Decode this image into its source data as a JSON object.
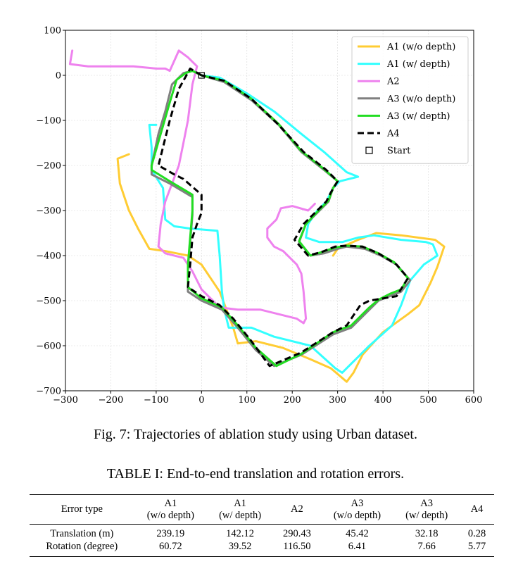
{
  "chart_data": {
    "type": "line",
    "title": "",
    "xlabel": "",
    "ylabel": "",
    "xlim": [
      -300,
      600
    ],
    "ylim": [
      -700,
      100
    ],
    "xticks": [
      -300,
      -200,
      -100,
      0,
      100,
      200,
      300,
      400,
      500,
      600
    ],
    "yticks": [
      100,
      0,
      -100,
      -200,
      -300,
      -400,
      -500,
      -600,
      -700
    ],
    "grid": true,
    "legend_position": "top-right",
    "series": [
      {
        "name": "A1 (w/o depth)",
        "color": "#ffcc33",
        "style": "solid",
        "points": [
          [
            -160,
            -175
          ],
          [
            -185,
            -185
          ],
          [
            -180,
            -240
          ],
          [
            -160,
            -300
          ],
          [
            -140,
            -340
          ],
          [
            -115,
            -385
          ],
          [
            -80,
            -390
          ],
          [
            -30,
            -400
          ],
          [
            0,
            -420
          ],
          [
            40,
            -480
          ],
          [
            70,
            -560
          ],
          [
            80,
            -595
          ],
          [
            120,
            -590
          ],
          [
            180,
            -605
          ],
          [
            240,
            -630
          ],
          [
            285,
            -650
          ],
          [
            320,
            -680
          ],
          [
            335,
            -660
          ],
          [
            355,
            -620
          ],
          [
            400,
            -570
          ],
          [
            455,
            -530
          ],
          [
            480,
            -510
          ],
          [
            505,
            -460
          ],
          [
            520,
            -425
          ],
          [
            535,
            -380
          ],
          [
            515,
            -365
          ],
          [
            440,
            -355
          ],
          [
            385,
            -350
          ],
          [
            345,
            -365
          ],
          [
            300,
            -385
          ],
          [
            290,
            -400
          ]
        ]
      },
      {
        "name": "A1 (w/ depth)",
        "color": "#33ffff",
        "style": "solid",
        "points": [
          [
            -100,
            -110
          ],
          [
            -115,
            -110
          ],
          [
            -110,
            -160
          ],
          [
            -110,
            -210
          ],
          [
            -85,
            -250
          ],
          [
            -80,
            -320
          ],
          [
            -60,
            -335
          ],
          [
            -25,
            -340
          ],
          [
            35,
            -345
          ],
          [
            40,
            -400
          ],
          [
            45,
            -480
          ],
          [
            50,
            -520
          ],
          [
            60,
            -560
          ],
          [
            110,
            -560
          ],
          [
            160,
            -580
          ],
          [
            240,
            -600
          ],
          [
            295,
            -650
          ],
          [
            310,
            -660
          ],
          [
            330,
            -640
          ],
          [
            370,
            -600
          ],
          [
            420,
            -555
          ],
          [
            440,
            -510
          ],
          [
            460,
            -455
          ],
          [
            490,
            -420
          ],
          [
            520,
            -400
          ],
          [
            510,
            -375
          ],
          [
            495,
            -370
          ],
          [
            440,
            -365
          ],
          [
            380,
            -355
          ],
          [
            345,
            -360
          ],
          [
            310,
            -370
          ],
          [
            260,
            -370
          ],
          [
            230,
            -360
          ],
          [
            235,
            -330
          ],
          [
            255,
            -300
          ],
          [
            275,
            -280
          ],
          [
            290,
            -250
          ],
          [
            305,
            -235
          ],
          [
            325,
            -230
          ],
          [
            345,
            -225
          ],
          [
            320,
            -215
          ],
          [
            270,
            -170
          ],
          [
            220,
            -130
          ],
          [
            160,
            -80
          ],
          [
            100,
            -40
          ],
          [
            40,
            -5
          ],
          [
            0,
            0
          ]
        ]
      },
      {
        "name": "A2",
        "color": "#ee82ee",
        "style": "solid",
        "points": [
          [
            -285,
            55
          ],
          [
            -290,
            25
          ],
          [
            -250,
            20
          ],
          [
            -200,
            20
          ],
          [
            -150,
            20
          ],
          [
            -100,
            15
          ],
          [
            -80,
            15
          ],
          [
            -70,
            10
          ],
          [
            -50,
            55
          ],
          [
            -30,
            40
          ],
          [
            -10,
            20
          ],
          [
            -20,
            -20
          ],
          [
            -30,
            -100
          ],
          [
            -40,
            -150
          ],
          [
            -50,
            -200
          ],
          [
            -80,
            -280
          ],
          [
            -90,
            -330
          ],
          [
            -95,
            -380
          ],
          [
            -80,
            -395
          ],
          [
            -40,
            -405
          ],
          [
            -20,
            -435
          ],
          [
            0,
            -475
          ],
          [
            40,
            -515
          ],
          [
            80,
            -520
          ],
          [
            130,
            -520
          ],
          [
            170,
            -530
          ],
          [
            210,
            -540
          ],
          [
            225,
            -550
          ],
          [
            230,
            -540
          ],
          [
            225,
            -480
          ],
          [
            220,
            -440
          ],
          [
            210,
            -420
          ],
          [
            180,
            -390
          ],
          [
            160,
            -380
          ],
          [
            145,
            -360
          ],
          [
            145,
            -340
          ],
          [
            165,
            -320
          ],
          [
            175,
            -295
          ],
          [
            200,
            -290
          ],
          [
            235,
            -300
          ],
          [
            250,
            -285
          ]
        ]
      },
      {
        "name": "A3 (w/o depth)",
        "color": "#808080",
        "style": "solid",
        "points": [
          [
            0,
            0
          ],
          [
            -20,
            10
          ],
          [
            -40,
            5
          ],
          [
            -65,
            -20
          ],
          [
            -80,
            -80
          ],
          [
            -95,
            -130
          ],
          [
            -110,
            -200
          ],
          [
            -110,
            -220
          ],
          [
            -70,
            -240
          ],
          [
            -20,
            -270
          ],
          [
            -20,
            -310
          ],
          [
            -25,
            -370
          ],
          [
            -30,
            -430
          ],
          [
            -30,
            -480
          ],
          [
            0,
            -500
          ],
          [
            45,
            -520
          ],
          [
            80,
            -560
          ],
          [
            120,
            -610
          ],
          [
            160,
            -645
          ],
          [
            220,
            -620
          ],
          [
            290,
            -575
          ],
          [
            330,
            -560
          ],
          [
            370,
            -520
          ],
          [
            390,
            -500
          ],
          [
            415,
            -490
          ],
          [
            440,
            -480
          ],
          [
            460,
            -455
          ],
          [
            430,
            -420
          ],
          [
            395,
            -400
          ],
          [
            360,
            -385
          ],
          [
            320,
            -380
          ],
          [
            300,
            -385
          ],
          [
            270,
            -395
          ],
          [
            240,
            -400
          ],
          [
            215,
            -370
          ],
          [
            230,
            -330
          ],
          [
            260,
            -300
          ],
          [
            280,
            -280
          ],
          [
            290,
            -250
          ],
          [
            300,
            -235
          ],
          [
            270,
            -210
          ],
          [
            220,
            -170
          ],
          [
            170,
            -110
          ],
          [
            110,
            -55
          ],
          [
            50,
            -15
          ],
          [
            0,
            0
          ]
        ]
      },
      {
        "name": "A3 (w/ depth)",
        "color": "#22dd22",
        "style": "solid",
        "points": [
          [
            0,
            0
          ],
          [
            -20,
            10
          ],
          [
            -35,
            5
          ],
          [
            -55,
            -10
          ],
          [
            -70,
            -60
          ],
          [
            -90,
            -130
          ],
          [
            -110,
            -200
          ],
          [
            -110,
            -210
          ],
          [
            -70,
            -235
          ],
          [
            -20,
            -265
          ],
          [
            -20,
            -300
          ],
          [
            -25,
            -360
          ],
          [
            -30,
            -420
          ],
          [
            -30,
            -470
          ],
          [
            0,
            -495
          ],
          [
            45,
            -515
          ],
          [
            80,
            -555
          ],
          [
            120,
            -605
          ],
          [
            165,
            -645
          ],
          [
            220,
            -618
          ],
          [
            290,
            -570
          ],
          [
            330,
            -555
          ],
          [
            370,
            -515
          ],
          [
            390,
            -498
          ],
          [
            415,
            -485
          ],
          [
            440,
            -475
          ],
          [
            455,
            -450
          ],
          [
            425,
            -415
          ],
          [
            390,
            -395
          ],
          [
            355,
            -380
          ],
          [
            320,
            -378
          ],
          [
            295,
            -382
          ],
          [
            265,
            -392
          ],
          [
            240,
            -400
          ],
          [
            215,
            -368
          ],
          [
            230,
            -330
          ],
          [
            260,
            -298
          ],
          [
            280,
            -278
          ],
          [
            290,
            -250
          ],
          [
            300,
            -235
          ],
          [
            270,
            -208
          ],
          [
            220,
            -168
          ],
          [
            170,
            -108
          ],
          [
            110,
            -52
          ],
          [
            50,
            -12
          ],
          [
            0,
            0
          ]
        ]
      },
      {
        "name": "A4",
        "color": "#000000",
        "style": "dashed",
        "points": [
          [
            0,
            0
          ],
          [
            -25,
            15
          ],
          [
            -50,
            -30
          ],
          [
            -70,
            -100
          ],
          [
            -90,
            -180
          ],
          [
            -95,
            -200
          ],
          [
            -60,
            -220
          ],
          [
            -40,
            -230
          ],
          [
            0,
            -265
          ],
          [
            0,
            -305
          ],
          [
            -10,
            -330
          ],
          [
            -20,
            -360
          ],
          [
            -25,
            -420
          ],
          [
            -30,
            -470
          ],
          [
            0,
            -490
          ],
          [
            40,
            -510
          ],
          [
            70,
            -540
          ],
          [
            110,
            -590
          ],
          [
            150,
            -645
          ],
          [
            220,
            -615
          ],
          [
            290,
            -570
          ],
          [
            320,
            -555
          ],
          [
            350,
            -510
          ],
          [
            370,
            -500
          ],
          [
            400,
            -495
          ],
          [
            430,
            -490
          ],
          [
            455,
            -450
          ],
          [
            430,
            -420
          ],
          [
            390,
            -395
          ],
          [
            355,
            -380
          ],
          [
            320,
            -378
          ],
          [
            295,
            -380
          ],
          [
            265,
            -392
          ],
          [
            235,
            -400
          ],
          [
            205,
            -365
          ],
          [
            225,
            -330
          ],
          [
            255,
            -300
          ],
          [
            275,
            -280
          ],
          [
            285,
            -260
          ],
          [
            300,
            -235
          ],
          [
            275,
            -210
          ],
          [
            225,
            -170
          ],
          [
            170,
            -110
          ],
          [
            110,
            -52
          ],
          [
            50,
            -12
          ],
          [
            0,
            0
          ]
        ]
      }
    ],
    "start_marker": {
      "name": "Start",
      "x": 0,
      "y": 0
    }
  },
  "figure_caption": "Fig. 7: Trajectories of ablation study using Urban dataset.",
  "table": {
    "caption": "TABLE I: End-to-end translation and rotation errors.",
    "header": {
      "error_type": "Error type",
      "a1_wo_line1": "A1",
      "a1_wo_line2": "(w/o depth)",
      "a1_w_line1": "A1",
      "a1_w_line2": "(w/ depth)",
      "a2": "A2",
      "a3_wo_line1": "A3",
      "a3_wo_line2": "(w/o depth)",
      "a3_w_line1": "A3",
      "a3_w_line2": "(w/ depth)",
      "a4": "A4"
    },
    "rows": [
      {
        "label": "Translation (m)",
        "values": [
          "239.19",
          "142.12",
          "290.43",
          "45.42",
          "32.18",
          "0.28"
        ]
      },
      {
        "label": "Rotation (degree)",
        "values": [
          "60.72",
          "39.52",
          "116.50",
          "6.41",
          "7.66",
          "5.77"
        ]
      }
    ]
  }
}
